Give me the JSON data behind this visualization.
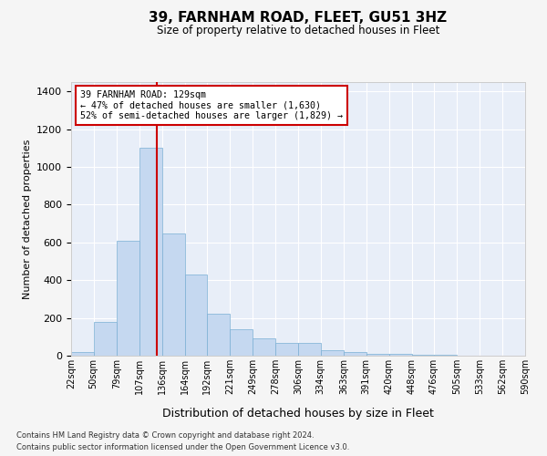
{
  "title": "39, FARNHAM ROAD, FLEET, GU51 3HZ",
  "subtitle": "Size of property relative to detached houses in Fleet",
  "xlabel": "Distribution of detached houses by size in Fleet",
  "ylabel": "Number of detached properties",
  "annotation_line1": "39 FARNHAM ROAD: 129sqm",
  "annotation_line2": "← 47% of detached houses are smaller (1,630)",
  "annotation_line3": "52% of semi-detached houses are larger (1,829) →",
  "property_size": 129,
  "bin_edges": [
    22,
    50,
    79,
    107,
    136,
    164,
    192,
    221,
    249,
    278,
    306,
    334,
    363,
    391,
    420,
    448,
    476,
    505,
    533,
    562,
    590
  ],
  "bar_heights": [
    20,
    180,
    610,
    1100,
    650,
    430,
    220,
    140,
    90,
    70,
    70,
    30,
    20,
    10,
    10,
    5,
    3,
    2,
    1,
    1
  ],
  "bar_color": "#c5d8f0",
  "bar_edge_color": "#7aafd4",
  "vline_color": "#cc0000",
  "vline_x": 129,
  "annotation_box_color": "#cc0000",
  "ylim": [
    0,
    1450
  ],
  "yticks": [
    0,
    200,
    400,
    600,
    800,
    1000,
    1200,
    1400
  ],
  "background_color": "#e8eef8",
  "grid_color": "#ffffff",
  "fig_background": "#f5f5f5",
  "footer_line1": "Contains HM Land Registry data © Crown copyright and database right 2024.",
  "footer_line2": "Contains public sector information licensed under the Open Government Licence v3.0."
}
